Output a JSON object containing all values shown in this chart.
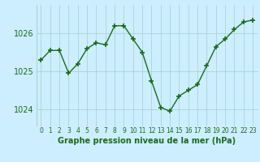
{
  "x": [
    0,
    1,
    2,
    3,
    4,
    5,
    6,
    7,
    8,
    9,
    10,
    11,
    12,
    13,
    14,
    15,
    16,
    17,
    18,
    19,
    20,
    21,
    22,
    23
  ],
  "y": [
    1025.3,
    1025.55,
    1025.55,
    1024.95,
    1025.2,
    1025.6,
    1025.75,
    1025.7,
    1026.2,
    1026.2,
    1025.85,
    1025.5,
    1024.75,
    1024.05,
    1023.95,
    1024.35,
    1024.5,
    1024.65,
    1025.15,
    1025.65,
    1025.85,
    1026.1,
    1026.3,
    1026.35
  ],
  "line_color": "#1a6b1a",
  "marker": "+",
  "marker_size": 4,
  "marker_linewidth": 1.2,
  "bg_color": "#cceeff",
  "grid_color": "#aad4d4",
  "axis_label_color": "#1a6b1a",
  "tick_color": "#1a6b1a",
  "xlabel": "Graphe pression niveau de la mer (hPa)",
  "yticks": [
    1024,
    1025,
    1026
  ],
  "ylim": [
    1023.55,
    1026.75
  ],
  "xlim": [
    -0.5,
    23.5
  ],
  "line_width": 1.0,
  "xlabel_fontsize": 7.0,
  "xlabel_fontweight": "bold",
  "ytick_fontsize": 7.0,
  "xtick_fontsize": 5.5
}
